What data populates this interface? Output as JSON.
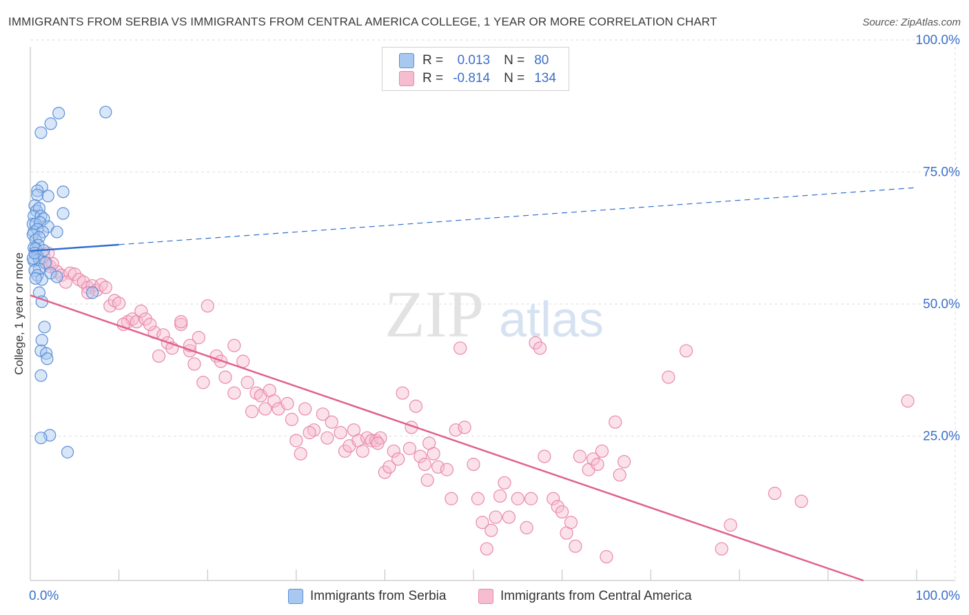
{
  "title": "IMMIGRANTS FROM SERBIA VS IMMIGRANTS FROM CENTRAL AMERICA COLLEGE, 1 YEAR OR MORE CORRELATION CHART",
  "source": "Source: ZipAtlas.com",
  "watermark": {
    "zip": "ZIP",
    "atlas": "atlas"
  },
  "colors": {
    "serbia_fill": "#a8c8f0",
    "serbia_stroke": "#5a8fd8",
    "serbia_line": "#2f6fd0",
    "ca_fill": "#f6bcd0",
    "ca_stroke": "#e888aa",
    "ca_line": "#e0608e",
    "tick_label": "#3a6fc9",
    "grid": "#dddddd"
  },
  "stats": {
    "r_label": "R =",
    "n_label": "N =",
    "rows": [
      {
        "r": "0.013",
        "n": "80"
      },
      {
        "r": "-0.814",
        "n": "134"
      }
    ]
  },
  "chart_data": {
    "type": "scatter",
    "title": "IMMIGRANTS FROM SERBIA VS IMMIGRANTS FROM CENTRAL AMERICA COLLEGE, 1 YEAR OR MORE CORRELATION CHART",
    "xlabel": "",
    "ylabel": "College, 1 year or more",
    "xlim": [
      0,
      100
    ],
    "ylim": [
      0,
      100
    ],
    "x_tick_labels": [
      "0.0%",
      "100.0%"
    ],
    "y_tick_labels": [
      "25.0%",
      "50.0%",
      "75.0%",
      "100.0%"
    ],
    "y_ticks": [
      25,
      50,
      75,
      100
    ],
    "grid": true,
    "legend_position": "bottom",
    "series": [
      {
        "name": "Immigrants from Serbia",
        "r": 0.013,
        "n": 80,
        "trend": {
          "x": [
            0,
            10,
            100
          ],
          "y": [
            62.4,
            63.6,
            74.4
          ],
          "solid_until_x": 10
        },
        "points": [
          [
            8.5,
            88.7
          ],
          [
            3.2,
            88.5
          ],
          [
            2.3,
            86.5
          ],
          [
            1.2,
            84.8
          ],
          [
            1.3,
            74.5
          ],
          [
            0.8,
            73.8
          ],
          [
            3.7,
            73.6
          ],
          [
            0.8,
            73.0
          ],
          [
            2.0,
            72.8
          ],
          [
            0.5,
            71.0
          ],
          [
            0.7,
            70.0
          ],
          [
            1.0,
            70.5
          ],
          [
            3.7,
            69.5
          ],
          [
            0.4,
            69.0
          ],
          [
            1.2,
            69.0
          ],
          [
            1.5,
            68.5
          ],
          [
            0.3,
            67.5
          ],
          [
            0.6,
            67.5
          ],
          [
            1.1,
            67.8
          ],
          [
            2.0,
            67.0
          ],
          [
            3.0,
            66.0
          ],
          [
            0.4,
            66.0
          ],
          [
            0.8,
            66.5
          ],
          [
            1.4,
            66.0
          ],
          [
            0.3,
            65.5
          ],
          [
            0.6,
            64.5
          ],
          [
            1.0,
            65.0
          ],
          [
            0.9,
            63.5
          ],
          [
            0.4,
            63.0
          ],
          [
            0.6,
            62.8
          ],
          [
            0.8,
            61.5
          ],
          [
            0.4,
            60.5
          ],
          [
            1.0,
            60.8
          ],
          [
            1.7,
            60.2
          ],
          [
            1.0,
            59.0
          ],
          [
            0.5,
            58.7
          ],
          [
            2.3,
            58.2
          ],
          [
            0.8,
            57.8
          ],
          [
            1.3,
            57.0
          ],
          [
            3.0,
            57.5
          ],
          [
            0.6,
            57.2
          ],
          [
            7.0,
            54.5
          ],
          [
            1.0,
            54.5
          ],
          [
            1.3,
            52.8
          ],
          [
            1.6,
            48.0
          ],
          [
            1.3,
            45.5
          ],
          [
            1.2,
            43.5
          ],
          [
            1.8,
            43.0
          ],
          [
            1.9,
            42.0
          ],
          [
            1.2,
            38.8
          ],
          [
            2.2,
            27.5
          ],
          [
            1.2,
            27.0
          ],
          [
            4.2,
            24.3
          ],
          [
            0.3,
            61.0
          ],
          [
            0.5,
            62.0
          ],
          [
            1.5,
            62.5
          ]
        ]
      },
      {
        "name": "Immigrants from Central America",
        "r": -0.814,
        "n": 134,
        "trend": {
          "x": [
            0,
            94
          ],
          "y": [
            54,
            0
          ]
        },
        "points": [
          [
            1.5,
            61.5
          ],
          [
            2.0,
            62.0
          ],
          [
            1.8,
            60.0
          ],
          [
            2.2,
            59.5
          ],
          [
            3.0,
            58.5
          ],
          [
            3.5,
            57.8
          ],
          [
            4.5,
            58.2
          ],
          [
            5.0,
            58.0
          ],
          [
            5.5,
            57.0
          ],
          [
            6.0,
            56.5
          ],
          [
            6.5,
            55.5
          ],
          [
            7.0,
            55.8
          ],
          [
            7.5,
            55.0
          ],
          [
            8.0,
            56.0
          ],
          [
            8.5,
            55.5
          ],
          [
            9.0,
            52.0
          ],
          [
            9.5,
            53.0
          ],
          [
            10.0,
            52.5
          ],
          [
            11.0,
            49.0
          ],
          [
            11.5,
            49.5
          ],
          [
            12.0,
            49.0
          ],
          [
            12.5,
            51.0
          ],
          [
            13.0,
            49.5
          ],
          [
            14.0,
            47.0
          ],
          [
            14.5,
            42.5
          ],
          [
            15.0,
            46.5
          ],
          [
            15.5,
            45.0
          ],
          [
            16.0,
            44.0
          ],
          [
            17.0,
            48.5
          ],
          [
            17.0,
            49.0
          ],
          [
            18.0,
            43.5
          ],
          [
            18.5,
            41.0
          ],
          [
            19.0,
            46.0
          ],
          [
            19.5,
            37.5
          ],
          [
            20.0,
            52.0
          ],
          [
            21.0,
            42.5
          ],
          [
            21.5,
            41.5
          ],
          [
            22.0,
            38.5
          ],
          [
            23.0,
            44.5
          ],
          [
            23.0,
            35.5
          ],
          [
            24.0,
            41.5
          ],
          [
            24.5,
            37.5
          ],
          [
            25.0,
            32.0
          ],
          [
            25.5,
            35.5
          ],
          [
            26.0,
            35.0
          ],
          [
            27.0,
            36.0
          ],
          [
            27.5,
            34.0
          ],
          [
            28.0,
            32.5
          ],
          [
            29.0,
            33.5
          ],
          [
            29.5,
            30.5
          ],
          [
            30.0,
            26.5
          ],
          [
            30.5,
            24.0
          ],
          [
            31.0,
            32.5
          ],
          [
            32.0,
            28.5
          ],
          [
            33.0,
            31.5
          ],
          [
            33.5,
            27.0
          ],
          [
            34.0,
            30.0
          ],
          [
            35.0,
            28.0
          ],
          [
            35.5,
            24.5
          ],
          [
            36.0,
            25.5
          ],
          [
            37.0,
            26.5
          ],
          [
            37.5,
            24.5
          ],
          [
            38.0,
            27.0
          ],
          [
            38.5,
            26.5
          ],
          [
            39.0,
            26.5
          ],
          [
            39.5,
            27.0
          ],
          [
            40.0,
            20.5
          ],
          [
            40.5,
            21.5
          ],
          [
            41.0,
            24.5
          ],
          [
            42.0,
            35.5
          ],
          [
            43.0,
            29.0
          ],
          [
            43.5,
            33.0
          ],
          [
            44.0,
            23.5
          ],
          [
            44.5,
            22.0
          ],
          [
            45.0,
            26.0
          ],
          [
            45.5,
            24.0
          ],
          [
            46.0,
            21.5
          ],
          [
            47.0,
            21.0
          ],
          [
            47.5,
            15.5
          ],
          [
            48.0,
            28.5
          ],
          [
            48.5,
            44.0
          ],
          [
            49.0,
            29.0
          ],
          [
            50.0,
            22.0
          ],
          [
            50.5,
            15.5
          ],
          [
            51.0,
            11.0
          ],
          [
            51.5,
            6.0
          ],
          [
            52.0,
            9.5
          ],
          [
            52.5,
            12.0
          ],
          [
            53.0,
            16.0
          ],
          [
            53.5,
            18.5
          ],
          [
            54.0,
            12.0
          ],
          [
            55.0,
            15.5
          ],
          [
            56.0,
            10.0
          ],
          [
            56.5,
            15.5
          ],
          [
            57.0,
            45.0
          ],
          [
            58.0,
            23.5
          ],
          [
            57.5,
            44.0
          ],
          [
            59.0,
            15.5
          ],
          [
            59.5,
            14.0
          ],
          [
            60.0,
            13.0
          ],
          [
            60.5,
            9.0
          ],
          [
            61.0,
            11.0
          ],
          [
            61.5,
            6.5
          ],
          [
            62.0,
            23.5
          ],
          [
            63.0,
            21.0
          ],
          [
            63.5,
            23.0
          ],
          [
            64.0,
            22.0
          ],
          [
            64.5,
            24.5
          ],
          [
            65.0,
            4.5
          ],
          [
            66.0,
            30.0
          ],
          [
            66.5,
            20.0
          ],
          [
            67.0,
            22.5
          ],
          [
            72.0,
            38.5
          ],
          [
            74.0,
            43.5
          ],
          [
            78.0,
            6.0
          ],
          [
            79.0,
            10.5
          ],
          [
            84.0,
            16.5
          ],
          [
            87.0,
            15.0
          ],
          [
            99.0,
            34.0
          ],
          [
            2.5,
            60.0
          ],
          [
            4.0,
            56.5
          ],
          [
            6.5,
            54.5
          ],
          [
            10.5,
            48.5
          ],
          [
            13.5,
            48.5
          ],
          [
            18.0,
            44.5
          ],
          [
            26.5,
            32.5
          ],
          [
            31.5,
            28.0
          ],
          [
            36.5,
            28.5
          ],
          [
            39.2,
            26.0
          ],
          [
            41.5,
            23.0
          ],
          [
            44.8,
            19.0
          ],
          [
            42.8,
            25.0
          ]
        ]
      }
    ]
  },
  "legend": {
    "items": [
      "Immigrants from Serbia",
      "Immigrants from Central America"
    ]
  }
}
